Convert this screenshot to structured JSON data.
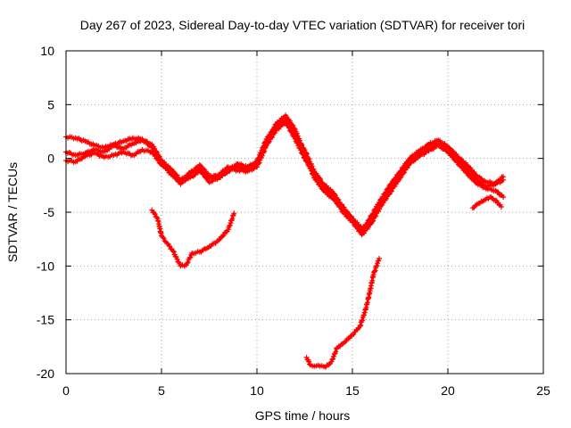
{
  "chart_data": {
    "type": "scatter",
    "title": "Day 267 of 2023, Sidereal Day-to-day VTEC variation (SDTVAR) for receiver tori",
    "xlabel": "GPS time / hours",
    "ylabel": "SDTVAR / TECUs",
    "xlim": [
      0,
      25
    ],
    "ylim": [
      -20,
      10
    ],
    "xticks": [
      0,
      5,
      10,
      15,
      20,
      25
    ],
    "yticks": [
      -20,
      -15,
      -10,
      -5,
      0,
      5,
      10
    ],
    "xtick_labels": [
      "0",
      "5",
      "10",
      "15",
      "20",
      "25"
    ],
    "ytick_labels": [
      "-20",
      "-15",
      "-10",
      "-5",
      "0",
      "5",
      "10"
    ],
    "grid": true,
    "marker_color": "#ff0000",
    "series": [
      {
        "name": "arc-1",
        "x": [
          0.0,
          0.5,
          1.0,
          1.5,
          2.0,
          2.5,
          3.0,
          3.5,
          4.0,
          4.5,
          5.0,
          5.5,
          6.0,
          6.5,
          7.0,
          7.5,
          8.0,
          8.5,
          9.0,
          9.5,
          10.0,
          10.5,
          11.0,
          11.5,
          12.0,
          12.5,
          13.0,
          13.5,
          14.0,
          14.5,
          15.0,
          15.5,
          16.0,
          16.5,
          17.0,
          17.5,
          18.0,
          18.5,
          19.0,
          19.5,
          20.0,
          20.5,
          21.0,
          21.5,
          22.0,
          22.5,
          22.9
        ],
        "y": [
          2.0,
          1.9,
          1.6,
          1.2,
          1.0,
          1.3,
          1.6,
          1.9,
          1.8,
          1.0,
          -0.4,
          -1.5,
          -2.2,
          -1.8,
          -1.2,
          -1.8,
          -1.5,
          -0.8,
          -0.8,
          -1.0,
          -0.5,
          1.5,
          3.2,
          4.0,
          2.7,
          0.4,
          -1.8,
          -3.0,
          -3.8,
          -4.7,
          -5.8,
          -6.8,
          -5.3,
          -3.8,
          -2.4,
          -1.2,
          0.0,
          0.7,
          1.3,
          1.7,
          1.1,
          0.2,
          -0.6,
          -1.6,
          -2.2,
          -2.3,
          -1.7
        ]
      },
      {
        "name": "arc-2",
        "x": [
          0.0,
          0.5,
          1.0,
          1.5,
          2.0,
          2.5,
          3.0,
          3.5,
          4.0,
          4.5,
          5.0,
          5.5,
          6.0,
          6.5,
          7.0,
          7.5,
          8.0,
          8.5,
          9.0,
          9.5,
          10.0,
          10.5,
          11.0,
          11.5,
          12.0,
          12.5,
          13.0,
          13.5,
          14.0,
          14.5,
          15.0,
          15.5,
          16.0,
          16.5,
          17.0,
          17.5,
          18.0,
          18.5,
          19.0,
          19.5,
          20.0,
          20.5,
          21.0,
          21.5,
          22.0,
          22.5,
          22.9
        ],
        "y": [
          0.6,
          0.3,
          0.5,
          0.8,
          0.6,
          1.2,
          0.9,
          1.4,
          1.7,
          1.3,
          -0.2,
          -1.0,
          -2.0,
          -1.4,
          -0.6,
          -1.6,
          -1.8,
          -1.2,
          -0.5,
          -0.8,
          -0.3,
          1.8,
          3.0,
          3.7,
          2.2,
          0.8,
          -1.2,
          -2.4,
          -3.2,
          -4.5,
          -5.6,
          -6.5,
          -5.7,
          -4.0,
          -2.8,
          -1.5,
          -0.3,
          0.4,
          1.0,
          1.4,
          1.0,
          0.0,
          -1.0,
          -2.0,
          -2.6,
          -2.4,
          -2.0
        ]
      },
      {
        "name": "arc-3",
        "x": [
          0.0,
          0.5,
          1.0,
          1.5,
          2.0,
          2.5,
          3.0,
          3.5,
          4.0,
          4.5,
          5.0,
          5.5,
          6.0,
          6.5,
          7.0,
          7.5,
          8.0,
          8.5,
          9.0,
          9.5,
          10.0,
          10.5,
          11.0,
          11.5,
          12.0,
          12.5,
          13.0,
          13.5,
          14.0,
          14.5,
          15.0,
          15.5,
          16.0,
          16.5,
          17.0,
          17.5,
          18.0,
          18.5,
          19.0,
          19.5,
          20.0,
          20.5,
          21.0,
          21.5,
          22.0,
          22.5,
          22.9
        ],
        "y": [
          -0.2,
          -0.3,
          0.2,
          0.5,
          0.1,
          0.3,
          0.6,
          0.3,
          0.8,
          0.6,
          -0.6,
          -1.2,
          -2.4,
          -1.3,
          -1.0,
          -2.2,
          -1.8,
          -1.0,
          -1.1,
          -1.2,
          -0.8,
          1.2,
          2.6,
          3.4,
          1.8,
          0.0,
          -1.5,
          -2.6,
          -3.5,
          -5.0,
          -5.9,
          -7.1,
          -6.0,
          -4.4,
          -3.1,
          -1.8,
          -0.5,
          0.2,
          0.7,
          1.2,
          0.6,
          -0.4,
          -1.4,
          -2.3,
          -2.8,
          -3.0,
          -3.6
        ]
      },
      {
        "name": "arc-4",
        "x": [
          4.5,
          4.8,
          5.0,
          5.3,
          5.6,
          6.0,
          6.3,
          6.6,
          7.0,
          7.5,
          8.0,
          8.5,
          8.8
        ],
        "y": [
          -4.8,
          -5.6,
          -7.2,
          -7.9,
          -8.6,
          -10.0,
          -9.9,
          -8.8,
          -8.7,
          -8.2,
          -7.6,
          -6.6,
          -5.1
        ]
      },
      {
        "name": "arc-5",
        "x": [
          12.6,
          12.8,
          13.0,
          13.3,
          13.6,
          13.9,
          14.2,
          14.5,
          15.0,
          15.4,
          15.7,
          15.9,
          16.1,
          16.4
        ],
        "y": [
          -18.5,
          -19.2,
          -19.3,
          -19.3,
          -19.4,
          -18.9,
          -17.6,
          -17.2,
          -16.4,
          -15.6,
          -14.0,
          -12.5,
          -10.8,
          -9.3
        ]
      },
      {
        "name": "arc-6",
        "x": [
          21.3,
          21.6,
          21.9,
          22.2,
          22.5,
          22.8
        ],
        "y": [
          -4.6,
          -4.2,
          -3.9,
          -3.6,
          -3.9,
          -4.5
        ]
      }
    ]
  }
}
